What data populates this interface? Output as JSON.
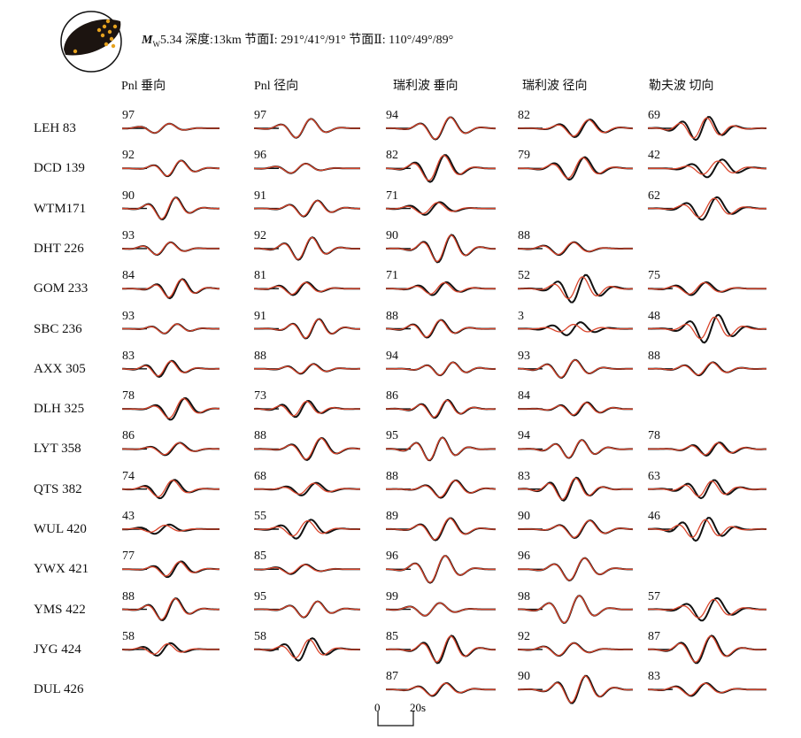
{
  "header": {
    "mw_label": "M",
    "mw_sub": "W",
    "text": "5.34  深度:13km  节面Ⅰ: 291°/41°/91°  节面Ⅱ: 110°/49°/89°"
  },
  "columns": [
    "Pnl 垂向",
    "Pnl 径向",
    "瑞利波 垂向",
    "瑞利波 径向",
    "勒夫波 切向"
  ],
  "stations": [
    {
      "name": "LEH 83",
      "cc": [
        "97",
        "97",
        "94",
        "82",
        "69"
      ]
    },
    {
      "name": "DCD 139",
      "cc": [
        "92",
        "96",
        "82",
        "79",
        "42"
      ]
    },
    {
      "name": "WTM171",
      "cc": [
        "90",
        "91",
        "71",
        null,
        "62"
      ]
    },
    {
      "name": "DHT 226",
      "cc": [
        "93",
        "92",
        "90",
        "88",
        null
      ]
    },
    {
      "name": "GOM 233",
      "cc": [
        "84",
        "81",
        "71",
        "52",
        "75"
      ]
    },
    {
      "name": "SBC 236",
      "cc": [
        "93",
        "91",
        "88",
        "3",
        "48"
      ]
    },
    {
      "name": "AXX 305",
      "cc": [
        "83",
        "88",
        "94",
        "93",
        "88"
      ]
    },
    {
      "name": "DLH 325",
      "cc": [
        "78",
        "73",
        "86",
        "84",
        null
      ]
    },
    {
      "name": "LYT 358",
      "cc": [
        "86",
        "88",
        "95",
        "94",
        "78"
      ]
    },
    {
      "name": "QTS 382",
      "cc": [
        "74",
        "68",
        "88",
        "83",
        "63"
      ]
    },
    {
      "name": "WUL 420",
      "cc": [
        "43",
        "55",
        "89",
        "90",
        "46"
      ]
    },
    {
      "name": "YWX 421",
      "cc": [
        "77",
        "85",
        "96",
        "96",
        null
      ]
    },
    {
      "name": "YMS 422",
      "cc": [
        "88",
        "95",
        "99",
        "98",
        "57"
      ]
    },
    {
      "name": "JYG 424",
      "cc": [
        "58",
        "58",
        "85",
        "92",
        "87"
      ]
    },
    {
      "name": "DUL 426",
      "cc": [
        null,
        null,
        "87",
        "90",
        "83"
      ]
    }
  ],
  "scale": {
    "start": "0",
    "end": "20s"
  },
  "colors": {
    "observed": "#111111",
    "synthetic": "#d9452b",
    "beachball": "#1c1410",
    "event": "#e6a21e"
  }
}
